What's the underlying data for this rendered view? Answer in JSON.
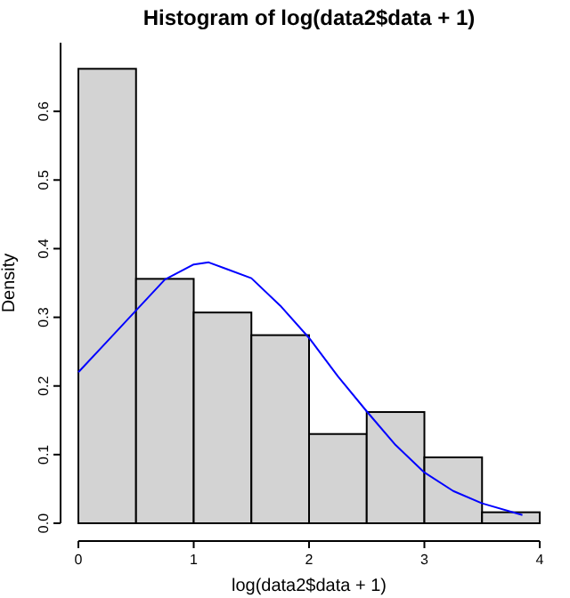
{
  "chart_data": {
    "type": "histogram",
    "title": "Histogram of log(data2$data + 1)",
    "xlabel": "log(data2$data + 1)",
    "ylabel": "Density",
    "bins": [
      0,
      0.5,
      1,
      1.5,
      2,
      2.5,
      3,
      3.5,
      4
    ],
    "values": [
      0.662,
      0.356,
      0.307,
      0.274,
      0.13,
      0.162,
      0.096,
      0.016
    ],
    "color": "#d3d3d3",
    "series": [
      {
        "type": "line",
        "color": "#0000ff",
        "x": [
          0,
          0.25,
          0.5,
          0.75,
          1,
          1.13,
          1.5,
          1.75,
          2,
          2.25,
          2.5,
          2.75,
          3,
          3.25,
          3.5,
          3.85
        ],
        "values": [
          0.22,
          0.265,
          0.31,
          0.355,
          0.377,
          0.38,
          0.357,
          0.317,
          0.27,
          0.214,
          0.163,
          0.114,
          0.074,
          0.047,
          0.029,
          0.012
        ]
      }
    ],
    "xlim": [
      0,
      4
    ],
    "ylim": [
      0,
      0.7
    ],
    "xticks": [
      0,
      1,
      2,
      3,
      4
    ],
    "yticks": [
      {
        "value": 0,
        "label": "0.0"
      },
      0.1,
      0.2,
      0.3,
      0.4,
      0.5,
      0.6
    ]
  }
}
